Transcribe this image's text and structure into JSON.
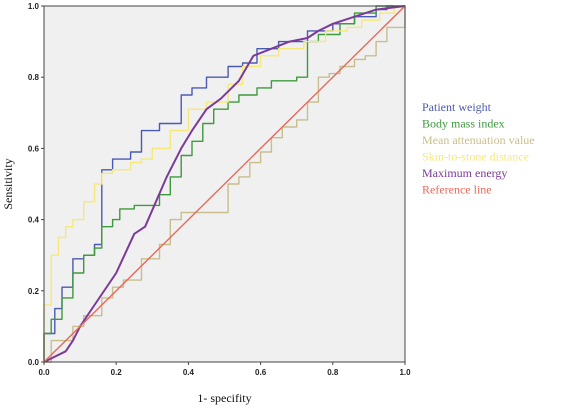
{
  "chart_data": {
    "type": "line",
    "title": "",
    "xlabel": "1- specifity",
    "ylabel": "Sensitivity",
    "xlim": [
      0,
      1
    ],
    "ylim": [
      0,
      1
    ],
    "xticks": [
      "0.0",
      "0.2",
      "0.4",
      "0.6",
      "0.8",
      "1.0"
    ],
    "yticks": [
      "0.0",
      "0.2",
      "0.4",
      "0.6",
      "0.8",
      "1.0"
    ],
    "grid": false,
    "background": "#f0f0f0",
    "legend_position": "right",
    "series": [
      {
        "name": "Patient weight",
        "color": "#4a5ab0",
        "points": [
          [
            0,
            0
          ],
          [
            0,
            0.08
          ],
          [
            0.03,
            0.08
          ],
          [
            0.03,
            0.15
          ],
          [
            0.05,
            0.15
          ],
          [
            0.05,
            0.21
          ],
          [
            0.08,
            0.21
          ],
          [
            0.08,
            0.29
          ],
          [
            0.11,
            0.29
          ],
          [
            0.11,
            0.3
          ],
          [
            0.14,
            0.3
          ],
          [
            0.14,
            0.33
          ],
          [
            0.16,
            0.33
          ],
          [
            0.16,
            0.54
          ],
          [
            0.19,
            0.54
          ],
          [
            0.19,
            0.57
          ],
          [
            0.24,
            0.57
          ],
          [
            0.24,
            0.59
          ],
          [
            0.27,
            0.59
          ],
          [
            0.27,
            0.65
          ],
          [
            0.32,
            0.65
          ],
          [
            0.32,
            0.67
          ],
          [
            0.38,
            0.67
          ],
          [
            0.38,
            0.75
          ],
          [
            0.41,
            0.75
          ],
          [
            0.41,
            0.77
          ],
          [
            0.45,
            0.77
          ],
          [
            0.45,
            0.8
          ],
          [
            0.51,
            0.8
          ],
          [
            0.51,
            0.83
          ],
          [
            0.55,
            0.83
          ],
          [
            0.55,
            0.84
          ],
          [
            0.59,
            0.84
          ],
          [
            0.59,
            0.88
          ],
          [
            0.65,
            0.88
          ],
          [
            0.65,
            0.9
          ],
          [
            0.73,
            0.9
          ],
          [
            0.73,
            0.93
          ],
          [
            0.8,
            0.93
          ],
          [
            0.8,
            0.95
          ],
          [
            0.86,
            0.95
          ],
          [
            0.86,
            0.97
          ],
          [
            0.92,
            0.97
          ],
          [
            0.92,
            0.99
          ],
          [
            0.95,
            0.99
          ],
          [
            0.95,
            1.0
          ],
          [
            1.0,
            1.0
          ]
        ]
      },
      {
        "name": "Body mass index",
        "color": "#3e9a3e",
        "points": [
          [
            0,
            0
          ],
          [
            0,
            0.08
          ],
          [
            0.02,
            0.08
          ],
          [
            0.02,
            0.12
          ],
          [
            0.05,
            0.12
          ],
          [
            0.05,
            0.18
          ],
          [
            0.08,
            0.18
          ],
          [
            0.08,
            0.25
          ],
          [
            0.11,
            0.25
          ],
          [
            0.11,
            0.3
          ],
          [
            0.14,
            0.3
          ],
          [
            0.14,
            0.32
          ],
          [
            0.16,
            0.32
          ],
          [
            0.16,
            0.38
          ],
          [
            0.19,
            0.38
          ],
          [
            0.19,
            0.4
          ],
          [
            0.21,
            0.4
          ],
          [
            0.21,
            0.43
          ],
          [
            0.25,
            0.43
          ],
          [
            0.25,
            0.44
          ],
          [
            0.32,
            0.44
          ],
          [
            0.32,
            0.47
          ],
          [
            0.35,
            0.47
          ],
          [
            0.35,
            0.52
          ],
          [
            0.38,
            0.52
          ],
          [
            0.38,
            0.58
          ],
          [
            0.41,
            0.58
          ],
          [
            0.41,
            0.62
          ],
          [
            0.44,
            0.62
          ],
          [
            0.44,
            0.67
          ],
          [
            0.47,
            0.67
          ],
          [
            0.47,
            0.71
          ],
          [
            0.51,
            0.71
          ],
          [
            0.51,
            0.73
          ],
          [
            0.54,
            0.73
          ],
          [
            0.54,
            0.75
          ],
          [
            0.59,
            0.75
          ],
          [
            0.59,
            0.77
          ],
          [
            0.63,
            0.77
          ],
          [
            0.63,
            0.79
          ],
          [
            0.7,
            0.79
          ],
          [
            0.7,
            0.8
          ],
          [
            0.73,
            0.8
          ],
          [
            0.73,
            0.9
          ],
          [
            0.76,
            0.9
          ],
          [
            0.76,
            0.92
          ],
          [
            0.82,
            0.92
          ],
          [
            0.82,
            0.95
          ],
          [
            0.86,
            0.95
          ],
          [
            0.86,
            0.98
          ],
          [
            0.92,
            0.98
          ],
          [
            0.92,
            1.0
          ],
          [
            1.0,
            1.0
          ]
        ]
      },
      {
        "name": "Mean attenuation value",
        "color": "#c8be8c",
        "points": [
          [
            0,
            0
          ],
          [
            0.02,
            0
          ],
          [
            0.02,
            0.06
          ],
          [
            0.08,
            0.06
          ],
          [
            0.08,
            0.1
          ],
          [
            0.11,
            0.1
          ],
          [
            0.11,
            0.13
          ],
          [
            0.16,
            0.13
          ],
          [
            0.16,
            0.18
          ],
          [
            0.19,
            0.18
          ],
          [
            0.19,
            0.21
          ],
          [
            0.22,
            0.21
          ],
          [
            0.22,
            0.23
          ],
          [
            0.27,
            0.23
          ],
          [
            0.27,
            0.29
          ],
          [
            0.32,
            0.29
          ],
          [
            0.32,
            0.33
          ],
          [
            0.35,
            0.33
          ],
          [
            0.35,
            0.4
          ],
          [
            0.38,
            0.4
          ],
          [
            0.38,
            0.42
          ],
          [
            0.51,
            0.42
          ],
          [
            0.51,
            0.5
          ],
          [
            0.54,
            0.5
          ],
          [
            0.54,
            0.52
          ],
          [
            0.57,
            0.52
          ],
          [
            0.57,
            0.56
          ],
          [
            0.6,
            0.56
          ],
          [
            0.6,
            0.59
          ],
          [
            0.63,
            0.59
          ],
          [
            0.63,
            0.63
          ],
          [
            0.66,
            0.63
          ],
          [
            0.66,
            0.66
          ],
          [
            0.7,
            0.66
          ],
          [
            0.7,
            0.68
          ],
          [
            0.73,
            0.68
          ],
          [
            0.73,
            0.73
          ],
          [
            0.76,
            0.73
          ],
          [
            0.76,
            0.8
          ],
          [
            0.79,
            0.8
          ],
          [
            0.79,
            0.81
          ],
          [
            0.82,
            0.81
          ],
          [
            0.82,
            0.83
          ],
          [
            0.86,
            0.83
          ],
          [
            0.86,
            0.85
          ],
          [
            0.89,
            0.85
          ],
          [
            0.89,
            0.86
          ],
          [
            0.92,
            0.86
          ],
          [
            0.92,
            0.9
          ],
          [
            0.95,
            0.9
          ],
          [
            0.95,
            0.94
          ],
          [
            1.0,
            0.94
          ],
          [
            1.0,
            1.0
          ]
        ]
      },
      {
        "name": "Skin-to-stone distance",
        "color": "#f5e87a",
        "points": [
          [
            0,
            0
          ],
          [
            0,
            0.16
          ],
          [
            0.02,
            0.16
          ],
          [
            0.02,
            0.3
          ],
          [
            0.04,
            0.3
          ],
          [
            0.04,
            0.35
          ],
          [
            0.06,
            0.35
          ],
          [
            0.06,
            0.38
          ],
          [
            0.08,
            0.38
          ],
          [
            0.08,
            0.4
          ],
          [
            0.11,
            0.4
          ],
          [
            0.11,
            0.45
          ],
          [
            0.14,
            0.45
          ],
          [
            0.14,
            0.5
          ],
          [
            0.16,
            0.5
          ],
          [
            0.16,
            0.53
          ],
          [
            0.19,
            0.53
          ],
          [
            0.19,
            0.54
          ],
          [
            0.24,
            0.54
          ],
          [
            0.24,
            0.56
          ],
          [
            0.27,
            0.56
          ],
          [
            0.27,
            0.57
          ],
          [
            0.3,
            0.57
          ],
          [
            0.3,
            0.6
          ],
          [
            0.35,
            0.6
          ],
          [
            0.35,
            0.65
          ],
          [
            0.4,
            0.65
          ],
          [
            0.4,
            0.71
          ],
          [
            0.45,
            0.71
          ],
          [
            0.45,
            0.73
          ],
          [
            0.51,
            0.73
          ],
          [
            0.51,
            0.78
          ],
          [
            0.55,
            0.78
          ],
          [
            0.55,
            0.83
          ],
          [
            0.6,
            0.83
          ],
          [
            0.6,
            0.86
          ],
          [
            0.65,
            0.86
          ],
          [
            0.65,
            0.88
          ],
          [
            0.72,
            0.88
          ],
          [
            0.72,
            0.9
          ],
          [
            0.78,
            0.9
          ],
          [
            0.78,
            0.93
          ],
          [
            0.84,
            0.93
          ],
          [
            0.84,
            0.94
          ],
          [
            0.88,
            0.94
          ],
          [
            0.88,
            0.96
          ],
          [
            0.93,
            0.96
          ],
          [
            0.93,
            0.98
          ],
          [
            0.97,
            0.98
          ],
          [
            0.97,
            1.0
          ],
          [
            1.0,
            1.0
          ]
        ]
      },
      {
        "name": "Maximum energy",
        "color": "#7b3a99",
        "points": [
          [
            0,
            0
          ],
          [
            0.06,
            0.03
          ],
          [
            0.08,
            0.06
          ],
          [
            0.1,
            0.1
          ],
          [
            0.14,
            0.16
          ],
          [
            0.2,
            0.25
          ],
          [
            0.25,
            0.36
          ],
          [
            0.28,
            0.38
          ],
          [
            0.31,
            0.45
          ],
          [
            0.34,
            0.52
          ],
          [
            0.38,
            0.6
          ],
          [
            0.41,
            0.65
          ],
          [
            0.45,
            0.71
          ],
          [
            0.49,
            0.74
          ],
          [
            0.54,
            0.79
          ],
          [
            0.58,
            0.86
          ],
          [
            0.63,
            0.88
          ],
          [
            0.68,
            0.9
          ],
          [
            0.73,
            0.91
          ],
          [
            0.76,
            0.93
          ],
          [
            0.8,
            0.95
          ],
          [
            0.86,
            0.97
          ],
          [
            0.92,
            0.99
          ],
          [
            1.0,
            1.0
          ]
        ]
      },
      {
        "name": "Reference line",
        "color": "#e8685a",
        "points": [
          [
            0,
            0
          ],
          [
            1,
            1
          ]
        ]
      }
    ]
  }
}
